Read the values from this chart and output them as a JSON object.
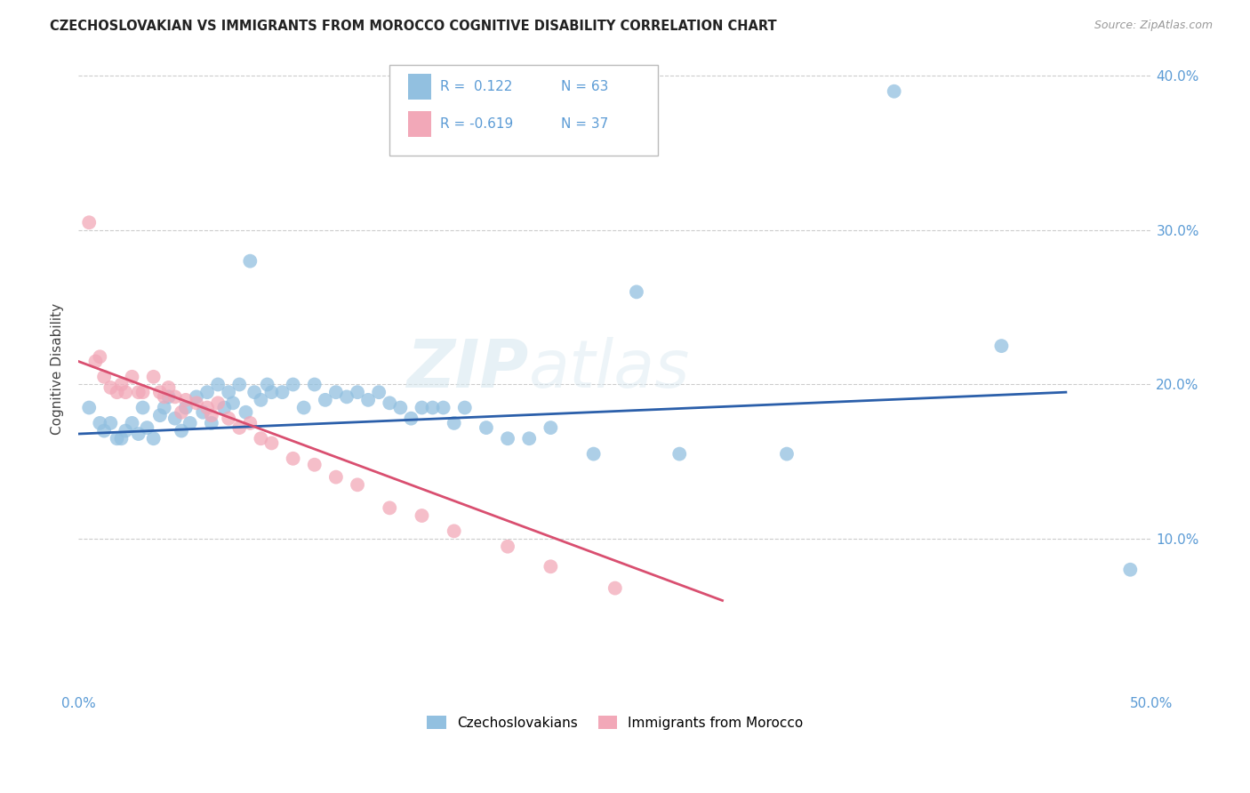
{
  "title": "CZECHOSLOVAKIAN VS IMMIGRANTS FROM MOROCCO COGNITIVE DISABILITY CORRELATION CHART",
  "source": "Source: ZipAtlas.com",
  "ylabel": "Cognitive Disability",
  "watermark_zip": "ZIP",
  "watermark_atlas": "atlas",
  "xlim": [
    0.0,
    0.5
  ],
  "ylim": [
    0.0,
    0.42
  ],
  "yticks": [
    0.1,
    0.2,
    0.3,
    0.4
  ],
  "ytick_labels": [
    "10.0%",
    "20.0%",
    "30.0%",
    "40.0%"
  ],
  "color_blue": "#92c0e0",
  "color_pink": "#f2a8b8",
  "line_blue": "#2b5faa",
  "line_pink": "#d94f70",
  "background_color": "#ffffff",
  "grid_color": "#cccccc",
  "blue_scatter_x": [
    0.005,
    0.01,
    0.012,
    0.015,
    0.018,
    0.02,
    0.022,
    0.025,
    0.028,
    0.03,
    0.032,
    0.035,
    0.038,
    0.04,
    0.042,
    0.045,
    0.048,
    0.05,
    0.052,
    0.055,
    0.058,
    0.06,
    0.062,
    0.065,
    0.068,
    0.07,
    0.072,
    0.075,
    0.078,
    0.08,
    0.082,
    0.085,
    0.088,
    0.09,
    0.095,
    0.1,
    0.105,
    0.11,
    0.115,
    0.12,
    0.125,
    0.13,
    0.135,
    0.14,
    0.145,
    0.15,
    0.155,
    0.16,
    0.165,
    0.17,
    0.175,
    0.18,
    0.19,
    0.2,
    0.21,
    0.22,
    0.24,
    0.26,
    0.28,
    0.33,
    0.38,
    0.43,
    0.49
  ],
  "blue_scatter_y": [
    0.185,
    0.175,
    0.17,
    0.175,
    0.165,
    0.165,
    0.17,
    0.175,
    0.168,
    0.185,
    0.172,
    0.165,
    0.18,
    0.185,
    0.192,
    0.178,
    0.17,
    0.185,
    0.175,
    0.192,
    0.182,
    0.195,
    0.175,
    0.2,
    0.185,
    0.195,
    0.188,
    0.2,
    0.182,
    0.28,
    0.195,
    0.19,
    0.2,
    0.195,
    0.195,
    0.2,
    0.185,
    0.2,
    0.19,
    0.195,
    0.192,
    0.195,
    0.19,
    0.195,
    0.188,
    0.185,
    0.178,
    0.185,
    0.185,
    0.185,
    0.175,
    0.185,
    0.172,
    0.165,
    0.165,
    0.172,
    0.155,
    0.26,
    0.155,
    0.155,
    0.39,
    0.225,
    0.08
  ],
  "pink_scatter_x": [
    0.005,
    0.008,
    0.01,
    0.012,
    0.015,
    0.018,
    0.02,
    0.022,
    0.025,
    0.028,
    0.03,
    0.035,
    0.038,
    0.04,
    0.042,
    0.045,
    0.048,
    0.05,
    0.055,
    0.06,
    0.062,
    0.065,
    0.07,
    0.075,
    0.08,
    0.085,
    0.09,
    0.1,
    0.11,
    0.12,
    0.13,
    0.145,
    0.16,
    0.175,
    0.2,
    0.22,
    0.25
  ],
  "pink_scatter_y": [
    0.305,
    0.215,
    0.218,
    0.205,
    0.198,
    0.195,
    0.2,
    0.195,
    0.205,
    0.195,
    0.195,
    0.205,
    0.195,
    0.192,
    0.198,
    0.192,
    0.182,
    0.19,
    0.188,
    0.185,
    0.18,
    0.188,
    0.178,
    0.172,
    0.175,
    0.165,
    0.162,
    0.152,
    0.148,
    0.14,
    0.135,
    0.12,
    0.115,
    0.105,
    0.095,
    0.082,
    0.068
  ],
  "blue_line_x": [
    0.0,
    0.46
  ],
  "blue_line_y": [
    0.168,
    0.195
  ],
  "pink_line_x": [
    0.0,
    0.3
  ],
  "pink_line_y": [
    0.215,
    0.06
  ],
  "legend_items": [
    {
      "r": "R =  0.122",
      "n": "N = 63",
      "color": "#92c0e0"
    },
    {
      "r": "R = -0.619",
      "n": "N = 37",
      "color": "#f2a8b8"
    }
  ],
  "bottom_legend": [
    "Czechoslovakians",
    "Immigrants from Morocco"
  ]
}
